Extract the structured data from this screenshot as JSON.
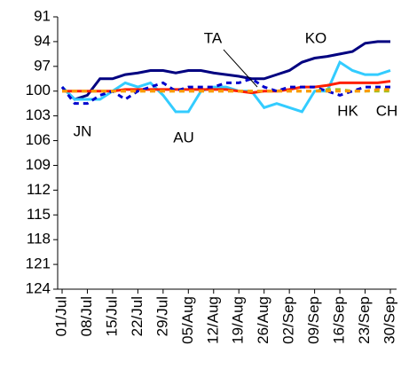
{
  "chart_data": {
    "type": "line",
    "categories": [
      "01/Jul",
      null,
      "08/Jul",
      null,
      "15/Jul",
      null,
      "22/Jul",
      null,
      "29/Jul",
      null,
      "05/Aug",
      null,
      "12/Aug",
      null,
      "19/Aug",
      null,
      "26/Aug",
      null,
      "02/Sep",
      null,
      "09/Sep",
      null,
      "16/Sep",
      null,
      "23/Sep",
      null,
      "30/Sep"
    ],
    "ylim": [
      124,
      91
    ],
    "yticks": [
      91,
      94,
      97,
      100,
      103,
      106,
      109,
      112,
      115,
      118,
      121,
      124
    ],
    "series": [
      {
        "name": "KO",
        "color": "#000080",
        "dashed": false,
        "values": [
          99.5,
          101,
          100.5,
          98.5,
          98.5,
          98,
          97.8,
          97.5,
          97.5,
          97.8,
          97.5,
          97.5,
          97.8,
          98,
          98.2,
          98.5,
          98.5,
          98,
          97.5,
          96.5,
          96,
          95.8,
          95.5,
          95.2,
          94.2,
          94,
          94
        ]
      },
      {
        "name": "AU",
        "color": "#33ccff",
        "dashed": false,
        "values": [
          99.5,
          101,
          101,
          101,
          100,
          99,
          99.5,
          99,
          100.5,
          102.5,
          102.5,
          100,
          99.5,
          99.5,
          100,
          100,
          102,
          101.5,
          102,
          102.5,
          100,
          100,
          96.5,
          97.5,
          98,
          98,
          97.5
        ]
      },
      {
        "name": "TA",
        "color": "#ff2000",
        "dashed": false,
        "values": [
          100,
          100,
          100,
          100,
          100,
          99.8,
          99.8,
          99.8,
          99.8,
          99.8,
          99.8,
          99.8,
          99.8,
          99.8,
          100,
          100.2,
          100,
          100,
          99.8,
          99.5,
          99.5,
          99.3,
          99,
          99,
          99,
          99,
          98.8
        ]
      },
      {
        "name": "JN",
        "color": "#0000cc",
        "dashed": true,
        "values": [
          99.5,
          101.5,
          101.5,
          100.5,
          100,
          101,
          100,
          99.5,
          99,
          100,
          99.5,
          99.5,
          99.5,
          99,
          99,
          98.5,
          99.5,
          100,
          99.5,
          99.5,
          99.5,
          100,
          100.5,
          100,
          99.5,
          99.5,
          99.5
        ]
      },
      {
        "name": "HK",
        "color": "#a0c020",
        "dashed": true,
        "values": [
          100,
          100,
          100,
          100,
          100,
          100,
          100,
          100,
          100,
          100,
          100,
          100,
          100,
          100,
          100,
          100,
          100,
          100,
          100,
          100,
          100,
          99.8,
          99.8,
          100,
          100,
          100,
          100
        ]
      },
      {
        "name": "CH",
        "color": "#ff9900",
        "dashed": true,
        "values": [
          100,
          100,
          100,
          100,
          100,
          100,
          100,
          100,
          100,
          100,
          100,
          100,
          100,
          100,
          100,
          100,
          100,
          100,
          100,
          100,
          100,
          100,
          100,
          100,
          100,
          99.8,
          99.8
        ]
      }
    ]
  }
}
